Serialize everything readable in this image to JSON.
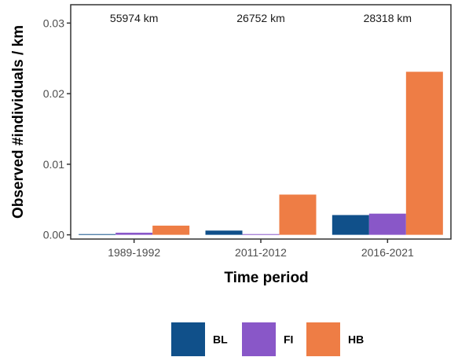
{
  "chart_data": {
    "type": "bar",
    "categories": [
      "1989-1992",
      "2011-2012",
      "2016-2021"
    ],
    "series": [
      {
        "name": "BL",
        "values": [
          0.0001,
          0.0006,
          0.0028
        ],
        "color": "#10508a"
      },
      {
        "name": "FI",
        "values": [
          0.0003,
          0.0001,
          0.003
        ],
        "color": "#8957c8"
      },
      {
        "name": "HB",
        "values": [
          0.0013,
          0.0057,
          0.0231
        ],
        "color": "#ee7d45"
      }
    ],
    "annotations": [
      "55974 km",
      "26752 km",
      "28318 km"
    ],
    "xlabel": "Time period",
    "ylabel": "Observed #individuals / km",
    "ylim": [
      -0.0006,
      0.0326
    ],
    "yticks": [
      0.0,
      0.01,
      0.02,
      0.03
    ],
    "ytick_labels": [
      "0.00",
      "0.01",
      "0.02",
      "0.03"
    ],
    "grid": false,
    "legend_position": "bottom"
  }
}
